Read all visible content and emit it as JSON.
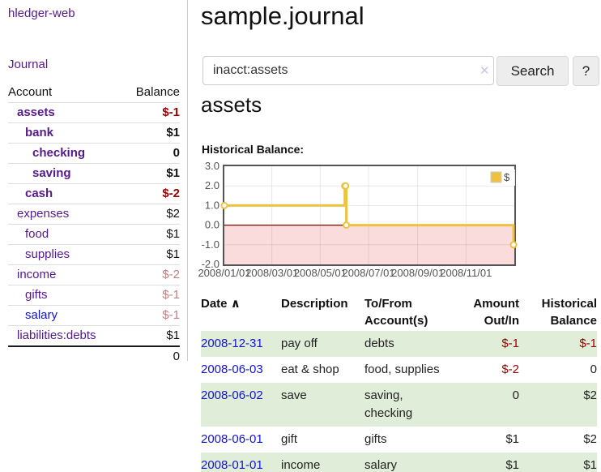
{
  "colors": {
    "link_purple": "#551a8b",
    "link_blue": "#1414cc",
    "negative_strong": "#990000",
    "negative_soft": "#c08080",
    "row_stripe_green": "#dfedd9",
    "chart_series": "#edc240",
    "chart_negative_fill": "#fbdcdc",
    "chart_zero_line": "#8b0000"
  },
  "brand": {
    "label": "hledger-web"
  },
  "sidebar": {
    "journal_link": "Journal",
    "accounts": {
      "headers": {
        "account": "Account",
        "balance": "Balance"
      },
      "rows": [
        {
          "name": "assets",
          "balance": "$-1",
          "level": 1,
          "emphasis": true,
          "balance_class": "neg-strong"
        },
        {
          "name": "bank",
          "balance": "$1",
          "level": 2,
          "emphasis": true,
          "balance_class": ""
        },
        {
          "name": "checking",
          "balance": "0",
          "level": 3,
          "emphasis": true,
          "balance_class": ""
        },
        {
          "name": "saving",
          "balance": "$1",
          "level": 3,
          "emphasis": true,
          "balance_class": ""
        },
        {
          "name": "cash",
          "balance": "$-2",
          "level": 2,
          "emphasis": true,
          "balance_class": "neg-strong"
        },
        {
          "name": "expenses",
          "balance": "$2",
          "level": 1,
          "emphasis": false,
          "balance_class": ""
        },
        {
          "name": "food",
          "balance": "$1",
          "level": 2,
          "emphasis": false,
          "balance_class": ""
        },
        {
          "name": "supplies",
          "balance": "$1",
          "level": 2,
          "emphasis": false,
          "balance_class": ""
        },
        {
          "name": "income",
          "balance": "$-2",
          "level": 1,
          "emphasis": false,
          "balance_class": "neg-soft"
        },
        {
          "name": "gifts",
          "balance": "$-1",
          "level": 2,
          "emphasis": false,
          "balance_class": "neg-soft"
        },
        {
          "name": "salary",
          "balance": "$-1",
          "level": 2,
          "emphasis": false,
          "balance_class": "neg-soft",
          "unvisited": true
        },
        {
          "name": "liabilities:debts",
          "balance": "$1",
          "level": 1,
          "emphasis": false,
          "balance_class": ""
        }
      ],
      "total": "0"
    }
  },
  "main": {
    "title": "sample.journal",
    "search": {
      "value": "inacct:assets",
      "clear_icon": "✕",
      "search_button": "Search",
      "help_button": "?"
    },
    "account_heading": "assets",
    "chart_title": "Historical Balance:"
  },
  "chart_data": {
    "type": "line",
    "step": true,
    "title": "Historical Balance:",
    "xlim": [
      "2008-01-01",
      "2009-01-01"
    ],
    "ylim": [
      -2,
      3
    ],
    "grid": true,
    "legend_position": "ne",
    "negative_fill": "#fbdcdc",
    "zero_line": "#8b0000",
    "yticks": [
      {
        "v": 3,
        "label": "3.0"
      },
      {
        "v": 2,
        "label": "2.0"
      },
      {
        "v": 1,
        "label": "1.0"
      },
      {
        "v": 0,
        "label": "0.0"
      },
      {
        "v": -1,
        "label": "-1.0"
      },
      {
        "v": -2,
        "label": "-2.0"
      }
    ],
    "xticks": [
      {
        "date": "2008-01-01",
        "label": "2008/01/01"
      },
      {
        "date": "2008-03-01",
        "label": "2008/03/01"
      },
      {
        "date": "2008-05-01",
        "label": "2008/05/01"
      },
      {
        "date": "2008-07-01",
        "label": "2008/07/01"
      },
      {
        "date": "2008-09-01",
        "label": "2008/09/01"
      },
      {
        "date": "2008-11-01",
        "label": "2008/11/01"
      }
    ],
    "series": [
      {
        "name": "$",
        "color": "#edc240",
        "points": [
          [
            "2008-01-01",
            1
          ],
          [
            "2008-06-01",
            2
          ],
          [
            "2008-06-02",
            2
          ],
          [
            "2008-06-03",
            0
          ],
          [
            "2008-12-31",
            -1
          ]
        ]
      }
    ]
  },
  "register": {
    "columns": {
      "date": "Date",
      "description": "Description",
      "accounts": "To/From Account(s)",
      "amount": "Amount Out/In",
      "balance": "Historical Balance"
    },
    "sort_icon": "∧",
    "rows": [
      {
        "date": "2008-12-31",
        "description": "pay off",
        "accounts": [
          "debts"
        ],
        "amount": "$-1",
        "balance": "$-1",
        "amount_neg": true,
        "balance_neg": true
      },
      {
        "date": "2008-06-03",
        "description": "eat & shop",
        "accounts": [
          "food, supplies"
        ],
        "amount": "$-2",
        "balance": "0",
        "amount_neg": true,
        "balance_neg": false
      },
      {
        "date": "2008-06-02",
        "description": "save",
        "accounts": [
          "saving,",
          "checking"
        ],
        "amount": "0",
        "balance": "$2",
        "amount_neg": false,
        "balance_neg": false
      },
      {
        "date": "2008-06-01",
        "description": "gift",
        "accounts": [
          "gifts"
        ],
        "amount": "$1",
        "balance": "$2",
        "amount_neg": false,
        "balance_neg": false
      },
      {
        "date": "2008-01-01",
        "description": "income",
        "accounts": [
          "salary"
        ],
        "amount": "$1",
        "balance": "$1",
        "amount_neg": false,
        "balance_neg": false
      }
    ]
  }
}
